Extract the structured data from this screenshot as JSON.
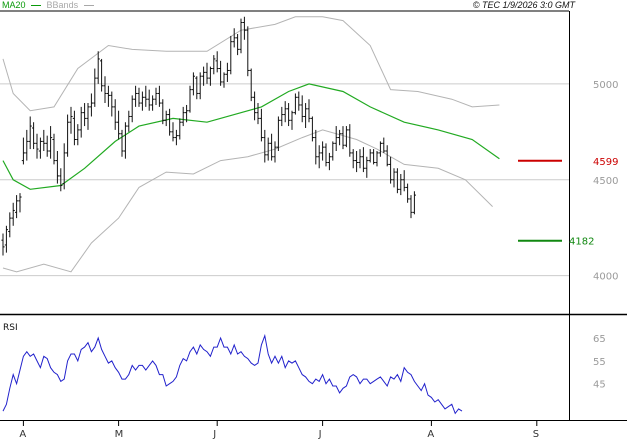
{
  "header": {
    "legend": [
      {
        "label": "MA20",
        "color": "#0a9a0a"
      },
      {
        "label": "BBands",
        "color": "#a8a8a8"
      }
    ],
    "copyright": "© TEC 1/9/2026 3:0 GMT"
  },
  "colors": {
    "price_bars": "#111111",
    "ma20": "#22aa22",
    "bbands": "#b4b4b4",
    "resistance": "#cc0000",
    "support": "#118811",
    "rsi": "#2222cc",
    "grid": "#cccccc"
  },
  "chart_data": [
    {
      "type": "ohlc",
      "ylim": [
        3800,
        5380
      ],
      "y_ticks": [
        {
          "value": 5000,
          "label": "5000"
        },
        {
          "value": 4500,
          "label": "4500"
        },
        {
          "value": 4000,
          "label": "4000"
        }
      ],
      "x_months": [
        "A",
        "M",
        "J",
        "J",
        "A",
        "S"
      ],
      "x_month_start_index": [
        6,
        34,
        63,
        94,
        126,
        157
      ],
      "ohlc": [
        [
          4185,
          4220,
          4105,
          4150
        ],
        [
          4160,
          4260,
          4120,
          4240
        ],
        [
          4230,
          4330,
          4200,
          4300
        ],
        [
          4300,
          4380,
          4260,
          4340
        ],
        [
          4330,
          4420,
          4300,
          4390
        ],
        [
          4390,
          4430,
          4330,
          4410
        ],
        [
          4600,
          4720,
          4580,
          4640
        ],
        [
          4640,
          4760,
          4600,
          4700
        ],
        [
          4700,
          4830,
          4660,
          4780
        ],
        [
          4770,
          4800,
          4660,
          4690
        ],
        [
          4690,
          4740,
          4610,
          4660
        ],
        [
          4650,
          4720,
          4610,
          4700
        ],
        [
          4700,
          4760,
          4650,
          4690
        ],
        [
          4690,
          4730,
          4620,
          4650
        ],
        [
          4650,
          4780,
          4610,
          4720
        ],
        [
          4710,
          4740,
          4580,
          4600
        ],
        [
          4600,
          4650,
          4480,
          4520
        ],
        [
          4520,
          4560,
          4440,
          4470
        ],
        [
          4480,
          4690,
          4450,
          4640
        ],
        [
          4640,
          4840,
          4620,
          4800
        ],
        [
          4800,
          4880,
          4740,
          4830
        ],
        [
          4820,
          4860,
          4680,
          4710
        ],
        [
          4710,
          4790,
          4680,
          4760
        ],
        [
          4760,
          4880,
          4720,
          4850
        ],
        [
          4850,
          4900,
          4780,
          4820
        ],
        [
          4820,
          4900,
          4760,
          4880
        ],
        [
          4880,
          4950,
          4830,
          4900
        ],
        [
          4900,
          5080,
          4880,
          5030
        ],
        [
          5030,
          5170,
          5000,
          5130
        ],
        [
          5120,
          5130,
          4960,
          4990
        ],
        [
          4990,
          5040,
          4900,
          4950
        ],
        [
          4950,
          4990,
          4880,
          4940
        ],
        [
          4940,
          4960,
          4830,
          4880
        ],
        [
          4880,
          4920,
          4760,
          4800
        ],
        [
          4800,
          4860,
          4710,
          4740
        ],
        [
          4740,
          4760,
          4620,
          4650
        ],
        [
          4650,
          4800,
          4610,
          4780
        ],
        [
          4780,
          4860,
          4750,
          4830
        ],
        [
          4830,
          4940,
          4800,
          4920
        ],
        [
          4920,
          4990,
          4880,
          4950
        ],
        [
          4950,
          4980,
          4880,
          4900
        ],
        [
          4900,
          4960,
          4860,
          4930
        ],
        [
          4930,
          4990,
          4880,
          4920
        ],
        [
          4920,
          4970,
          4860,
          4890
        ],
        [
          4890,
          4940,
          4860,
          4920
        ],
        [
          4920,
          4980,
          4890,
          4950
        ],
        [
          4950,
          4990,
          4880,
          4900
        ],
        [
          4900,
          4920,
          4790,
          4810
        ],
        [
          4810,
          4860,
          4780,
          4840
        ],
        [
          4840,
          4870,
          4730,
          4750
        ],
        [
          4750,
          4800,
          4700,
          4720
        ],
        [
          4720,
          4760,
          4680,
          4730
        ],
        [
          4730,
          4820,
          4710,
          4800
        ],
        [
          4800,
          4880,
          4780,
          4850
        ],
        [
          4850,
          4890,
          4800,
          4860
        ],
        [
          4860,
          4990,
          4850,
          4970
        ],
        [
          4970,
          5060,
          4940,
          5040
        ],
        [
          5030,
          5040,
          4920,
          4950
        ],
        [
          4950,
          5060,
          4920,
          5040
        ],
        [
          5040,
          5090,
          4990,
          5060
        ],
        [
          5060,
          5110,
          5000,
          5030
        ],
        [
          5030,
          5090,
          4990,
          5080
        ],
        [
          5080,
          5150,
          5050,
          5130
        ],
        [
          5120,
          5170,
          5060,
          5080
        ],
        [
          5080,
          5120,
          4990,
          5010
        ],
        [
          5010,
          5060,
          4980,
          5050
        ],
        [
          5050,
          5110,
          5010,
          5070
        ],
        [
          5070,
          5250,
          5050,
          5220
        ],
        [
          5220,
          5290,
          5190,
          5240
        ],
        [
          5240,
          5260,
          5150,
          5180
        ],
        [
          5180,
          5340,
          5160,
          5320
        ],
        [
          5320,
          5350,
          5230,
          5280
        ],
        [
          5280,
          5300,
          5040,
          5070
        ],
        [
          5070,
          5080,
          4910,
          4930
        ],
        [
          4930,
          4960,
          4810,
          4850
        ],
        [
          4850,
          4900,
          4790,
          4820
        ],
        [
          4820,
          4870,
          4700,
          4720
        ],
        [
          4720,
          4760,
          4590,
          4630
        ],
        [
          4630,
          4720,
          4600,
          4690
        ],
        [
          4690,
          4740,
          4600,
          4620
        ],
        [
          4620,
          4700,
          4590,
          4670
        ],
        [
          4670,
          4830,
          4650,
          4810
        ],
        [
          4810,
          4880,
          4780,
          4840
        ],
        [
          4840,
          4910,
          4800,
          4870
        ],
        [
          4870,
          4900,
          4780,
          4810
        ],
        [
          4810,
          4860,
          4760,
          4850
        ],
        [
          4850,
          4950,
          4840,
          4930
        ],
        [
          4930,
          4960,
          4860,
          4890
        ],
        [
          4890,
          4940,
          4800,
          4830
        ],
        [
          4830,
          4900,
          4770,
          4870
        ],
        [
          4870,
          4920,
          4800,
          4820
        ],
        [
          4820,
          4830,
          4700,
          4720
        ],
        [
          4720,
          4760,
          4580,
          4620
        ],
        [
          4620,
          4680,
          4560,
          4640
        ],
        [
          4640,
          4700,
          4600,
          4670
        ],
        [
          4670,
          4690,
          4570,
          4590
        ],
        [
          4590,
          4640,
          4550,
          4620
        ],
        [
          4620,
          4700,
          4600,
          4690
        ],
        [
          4690,
          4780,
          4650,
          4720
        ],
        [
          4720,
          4760,
          4680,
          4740
        ],
        [
          4740,
          4780,
          4660,
          4680
        ],
        [
          4680,
          4780,
          4670,
          4760
        ],
        [
          4760,
          4790,
          4620,
          4640
        ],
        [
          4640,
          4660,
          4560,
          4600
        ],
        [
          4600,
          4650,
          4540,
          4590
        ],
        [
          4590,
          4660,
          4560,
          4620
        ],
        [
          4620,
          4670,
          4540,
          4560
        ],
        [
          4560,
          4620,
          4510,
          4600
        ],
        [
          4600,
          4660,
          4590,
          4640
        ],
        [
          4640,
          4660,
          4580,
          4590
        ],
        [
          4590,
          4650,
          4570,
          4640
        ],
        [
          4640,
          4700,
          4620,
          4690
        ],
        [
          4690,
          4720,
          4640,
          4650
        ],
        [
          4650,
          4680,
          4570,
          4580
        ],
        [
          4580,
          4620,
          4480,
          4500
        ],
        [
          4500,
          4560,
          4460,
          4540
        ],
        [
          4540,
          4560,
          4430,
          4450
        ],
        [
          4450,
          4530,
          4420,
          4500
        ],
        [
          4500,
          4550,
          4440,
          4460
        ],
        [
          4460,
          4480,
          4380,
          4400
        ],
        [
          4400,
          4420,
          4300,
          4330
        ],
        [
          4330,
          4440,
          4320,
          4420
        ]
      ],
      "ma20": [
        [
          0,
          4600
        ],
        [
          3,
          4500
        ],
        [
          8,
          4450
        ],
        [
          17,
          4470
        ],
        [
          24,
          4560
        ],
        [
          33,
          4700
        ],
        [
          40,
          4780
        ],
        [
          50,
          4820
        ],
        [
          60,
          4800
        ],
        [
          68,
          4840
        ],
        [
          76,
          4880
        ],
        [
          84,
          4960
        ],
        [
          90,
          5000
        ],
        [
          100,
          4960
        ],
        [
          108,
          4880
        ],
        [
          118,
          4800
        ],
        [
          128,
          4760
        ],
        [
          138,
          4710
        ],
        [
          146,
          4610
        ]
      ],
      "bbands_upper": [
        [
          0,
          5130
        ],
        [
          3,
          4950
        ],
        [
          8,
          4860
        ],
        [
          15,
          4880
        ],
        [
          22,
          5080
        ],
        [
          31,
          5200
        ],
        [
          38,
          5180
        ],
        [
          48,
          5170
        ],
        [
          60,
          5170
        ],
        [
          70,
          5280
        ],
        [
          80,
          5310
        ],
        [
          86,
          5350
        ],
        [
          94,
          5350
        ],
        [
          100,
          5330
        ],
        [
          108,
          5200
        ],
        [
          114,
          4970
        ],
        [
          122,
          4960
        ],
        [
          132,
          4920
        ],
        [
          138,
          4880
        ],
        [
          146,
          4890
        ]
      ],
      "bbands_lower": [
        [
          0,
          4040
        ],
        [
          4,
          4020
        ],
        [
          12,
          4060
        ],
        [
          20,
          4020
        ],
        [
          26,
          4170
        ],
        [
          34,
          4300
        ],
        [
          40,
          4460
        ],
        [
          48,
          4540
        ],
        [
          56,
          4530
        ],
        [
          64,
          4600
        ],
        [
          72,
          4620
        ],
        [
          80,
          4660
        ],
        [
          88,
          4720
        ],
        [
          94,
          4760
        ],
        [
          104,
          4710
        ],
        [
          110,
          4660
        ],
        [
          118,
          4580
        ],
        [
          128,
          4560
        ],
        [
          136,
          4500
        ],
        [
          144,
          4360
        ]
      ],
      "levels": [
        {
          "value": 4599,
          "label": "4599",
          "kind": "resistance"
        },
        {
          "value": 4182,
          "label": "4182",
          "kind": "support"
        }
      ]
    },
    {
      "type": "line",
      "title": "RSI",
      "ylim": [
        30,
        72
      ],
      "y_ticks": [
        {
          "value": 65,
          "label": "65"
        },
        {
          "value": 55,
          "label": "55"
        },
        {
          "value": 45,
          "label": "45"
        }
      ],
      "values": [
        33,
        36,
        43,
        49,
        45,
        51,
        57,
        59,
        57,
        58,
        55,
        52,
        57,
        56,
        52,
        50,
        49,
        46,
        47,
        55,
        58,
        58,
        55,
        60,
        61,
        63,
        59,
        61,
        65,
        60,
        57,
        54,
        55,
        52,
        50,
        47,
        47,
        49,
        53,
        51,
        53,
        53,
        51,
        53,
        55,
        53,
        49,
        49,
        44,
        45,
        46,
        48,
        53,
        56,
        55,
        59,
        61,
        58,
        62,
        60,
        59,
        57,
        61,
        61,
        65,
        61,
        61,
        58,
        62,
        58,
        59,
        57,
        56,
        54,
        53,
        54,
        62,
        66,
        58,
        54,
        57,
        54,
        57,
        52,
        55,
        54,
        55,
        52,
        49,
        48,
        46,
        45,
        47,
        46,
        49,
        45,
        47,
        44,
        44,
        41,
        43,
        44,
        48,
        49,
        48,
        45,
        47,
        47,
        45,
        46,
        47,
        48,
        46,
        44,
        48,
        47,
        49,
        46,
        52,
        50,
        49,
        46,
        44,
        42,
        45,
        40,
        39,
        37,
        38,
        36,
        34,
        35,
        36,
        32,
        34,
        33
      ]
    }
  ]
}
